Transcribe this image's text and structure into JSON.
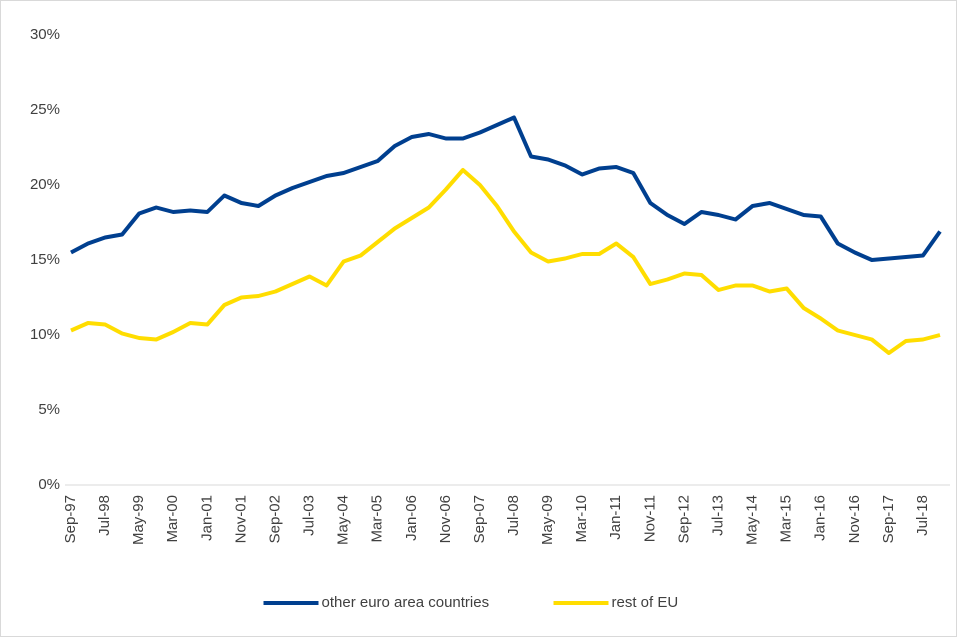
{
  "chart_data": {
    "type": "line",
    "categories": [
      "Sep-97",
      null,
      "Jul-98",
      null,
      "May-99",
      null,
      "Mar-00",
      null,
      "Jan-01",
      null,
      "Nov-01",
      null,
      "Sep-02",
      null,
      "Jul-03",
      null,
      "May-04",
      null,
      "Mar-05",
      null,
      "Jan-06",
      null,
      "Nov-06",
      null,
      "Sep-07",
      null,
      "Jul-08",
      null,
      "May-09",
      null,
      "Mar-10",
      null,
      "Jan-11",
      null,
      "Nov-11",
      null,
      "Sep-12",
      null,
      "Jul-13",
      null,
      "May-14",
      null,
      "Mar-15",
      null,
      "Jan-16",
      null,
      "Nov-16",
      null,
      "Sep-17",
      null,
      "Jul-18",
      null
    ],
    "series": [
      {
        "name": "other euro area countries",
        "color": "#003f8f",
        "values": [
          15.5,
          16.1,
          16.5,
          16.7,
          18.1,
          18.5,
          18.2,
          18.3,
          18.2,
          19.3,
          18.8,
          18.6,
          19.3,
          19.8,
          20.2,
          20.6,
          20.8,
          21.2,
          21.6,
          22.6,
          23.2,
          23.4,
          23.1,
          23.1,
          23.5,
          24.0,
          24.5,
          21.9,
          21.7,
          21.3,
          20.7,
          21.1,
          21.2,
          20.8,
          18.8,
          18.0,
          17.4,
          18.2,
          18.0,
          17.7,
          18.6,
          18.8,
          18.4,
          18.0,
          17.9,
          16.1,
          15.5,
          15.0,
          15.1,
          15.2,
          15.3,
          16.9
        ]
      },
      {
        "name": "rest of EU",
        "color": "#ffdd00",
        "values": [
          10.3,
          10.8,
          10.7,
          10.1,
          9.8,
          9.7,
          10.2,
          10.8,
          10.7,
          12.0,
          12.5,
          12.6,
          12.9,
          13.4,
          13.9,
          13.3,
          14.9,
          15.3,
          16.2,
          17.1,
          17.8,
          18.5,
          19.7,
          21.0,
          20.0,
          18.6,
          16.9,
          15.5,
          14.9,
          15.1,
          15.4,
          15.4,
          16.1,
          15.2,
          13.4,
          13.7,
          14.1,
          14.0,
          13.0,
          13.3,
          13.3,
          12.9,
          13.1,
          11.8,
          11.1,
          10.3,
          10.0,
          9.7,
          8.8,
          9.6,
          9.7,
          10.0
        ]
      }
    ],
    "ylim": [
      0,
      30
    ],
    "yticks": [
      {
        "value": 0,
        "label": "0%"
      },
      {
        "value": 5,
        "label": "5%"
      },
      {
        "value": 10,
        "label": "10%"
      },
      {
        "value": 15,
        "label": "15%"
      },
      {
        "value": 20,
        "label": "20%"
      },
      {
        "value": 25,
        "label": "25%"
      },
      {
        "value": 30,
        "label": "30%"
      }
    ],
    "grid": false,
    "legend": "bottom"
  }
}
